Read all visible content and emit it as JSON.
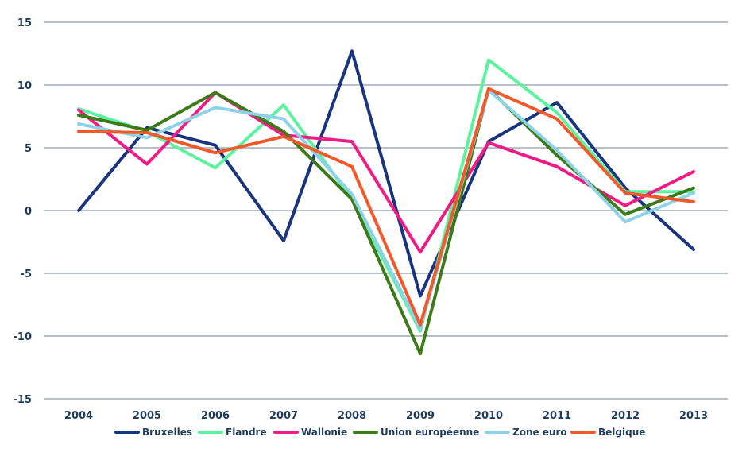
{
  "chart_data": {
    "type": "line",
    "title": "",
    "xlabel": "",
    "ylabel": "",
    "x": [
      "2004",
      "2005",
      "2006",
      "2007",
      "2008",
      "2009",
      "2010",
      "2011",
      "2012",
      "2013"
    ],
    "ylim": [
      -15,
      15
    ],
    "yticks": [
      "15",
      "10",
      "5",
      "0",
      "-5",
      "-10",
      "-15"
    ],
    "grid": "horizontal",
    "legend_position": "bottom",
    "series": [
      {
        "name": "Bruxelles",
        "color": "#1a3580",
        "values": [
          0.0,
          6.6,
          5.2,
          -2.4,
          12.7,
          -6.8,
          5.5,
          8.6,
          1.8,
          -3.1
        ]
      },
      {
        "name": "Flandre",
        "color": "#5cf2a0",
        "values": [
          8.1,
          6.3,
          3.4,
          8.4,
          0.9,
          -9.6,
          12.0,
          7.8,
          1.5,
          1.5
        ]
      },
      {
        "name": "Wallonie",
        "color": "#ee1c84",
        "values": [
          8.0,
          3.7,
          9.4,
          6.0,
          5.5,
          -3.3,
          5.4,
          3.5,
          0.4,
          3.1
        ]
      },
      {
        "name": "Union européenne",
        "color": "#3c7a1a",
        "values": [
          7.6,
          6.4,
          9.4,
          6.3,
          0.9,
          -11.4,
          9.7,
          4.4,
          -0.3,
          1.8
        ]
      },
      {
        "name": "Zone euro",
        "color": "#8ed2e8",
        "values": [
          6.9,
          5.8,
          8.2,
          7.3,
          1.3,
          -9.4,
          9.6,
          4.8,
          -0.9,
          1.4
        ]
      },
      {
        "name": "Belgique",
        "color": "#f2592a",
        "values": [
          6.3,
          6.2,
          4.6,
          5.9,
          3.5,
          -9.1,
          9.7,
          7.3,
          1.4,
          0.7
        ]
      }
    ]
  }
}
